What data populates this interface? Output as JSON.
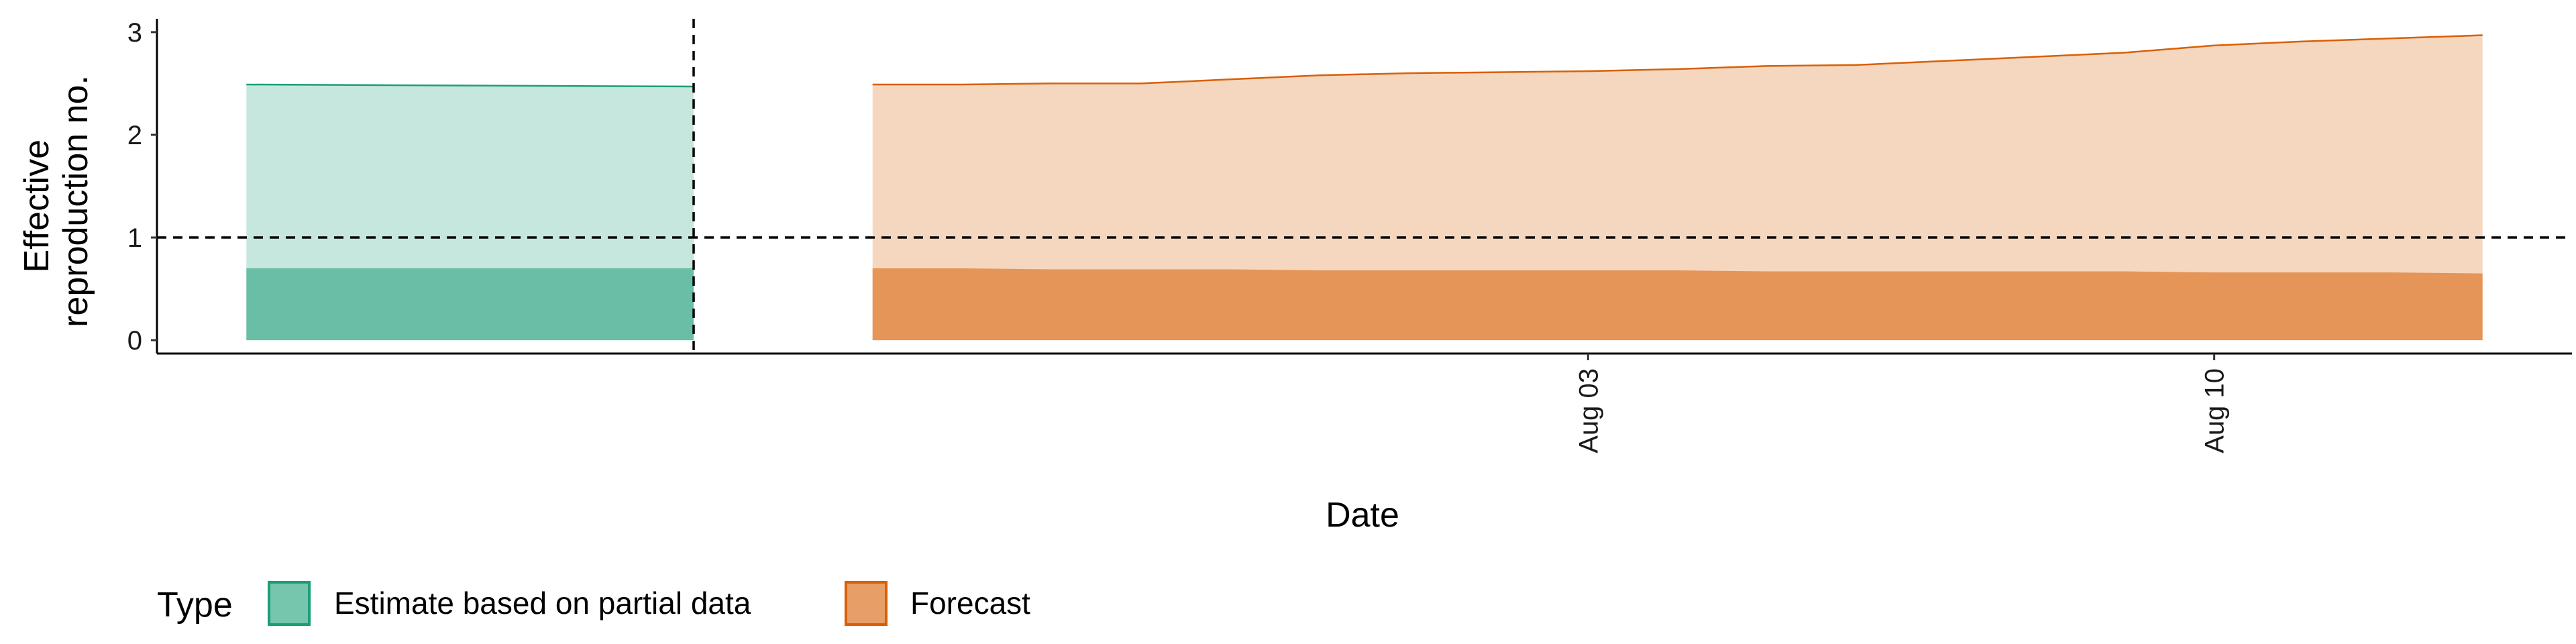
{
  "chart_data": {
    "type": "area",
    "xlabel": "Date",
    "ylabel_lines": [
      "Effective",
      "reproduction no."
    ],
    "y_ticks": [
      0,
      1,
      2,
      3
    ],
    "ylim": [
      -0.13,
      3.13
    ],
    "xlim": [
      "2020-07-18",
      "2020-08-14"
    ],
    "x_ticks": [
      {
        "date": "2020-08-03",
        "label": "Aug 03"
      },
      {
        "date": "2020-08-10",
        "label": "Aug 10"
      }
    ],
    "reference_line_y": 1,
    "partial_data_cutoff_date": "2020-07-24",
    "grid": false,
    "legend": {
      "title": "Type",
      "position": "bottom-left",
      "items": [
        {
          "label": "Estimate based on partial data",
          "color": "#1b9e77"
        },
        {
          "label": "Forecast",
          "color": "#d95f02"
        }
      ]
    },
    "series": [
      {
        "name": "Estimate based on partial data",
        "color": "#1b9e77",
        "x": [
          "2020-07-19",
          "2020-07-24"
        ],
        "outer_lower": [
          0,
          0
        ],
        "outer_upper": [
          2.49,
          2.47
        ],
        "inner_lower": [
          0,
          0
        ],
        "inner_upper": [
          0.7,
          0.7
        ]
      },
      {
        "name": "Forecast",
        "color": "#d95f02",
        "x": [
          "2020-07-26",
          "2020-07-27",
          "2020-07-28",
          "2020-07-29",
          "2020-07-30",
          "2020-07-31",
          "2020-08-01",
          "2020-08-02",
          "2020-08-03",
          "2020-08-04",
          "2020-08-05",
          "2020-08-06",
          "2020-08-07",
          "2020-08-08",
          "2020-08-09",
          "2020-08-10",
          "2020-08-11",
          "2020-08-12",
          "2020-08-13"
        ],
        "outer_lower": [
          0,
          0,
          0,
          0,
          0,
          0,
          0,
          0,
          0,
          0,
          0,
          0,
          0,
          0,
          0,
          0,
          0,
          0,
          0
        ],
        "outer_upper": [
          2.49,
          2.49,
          2.5,
          2.5,
          2.54,
          2.58,
          2.6,
          2.61,
          2.62,
          2.64,
          2.67,
          2.68,
          2.72,
          2.76,
          2.8,
          2.87,
          2.91,
          2.94,
          2.97
        ],
        "inner_lower": [
          0,
          0,
          0,
          0,
          0,
          0,
          0,
          0,
          0,
          0,
          0,
          0,
          0,
          0,
          0,
          0,
          0,
          0,
          0
        ],
        "inner_upper": [
          0.7,
          0.7,
          0.69,
          0.69,
          0.69,
          0.68,
          0.68,
          0.68,
          0.68,
          0.68,
          0.67,
          0.67,
          0.67,
          0.67,
          0.67,
          0.66,
          0.66,
          0.66,
          0.65
        ]
      }
    ]
  }
}
